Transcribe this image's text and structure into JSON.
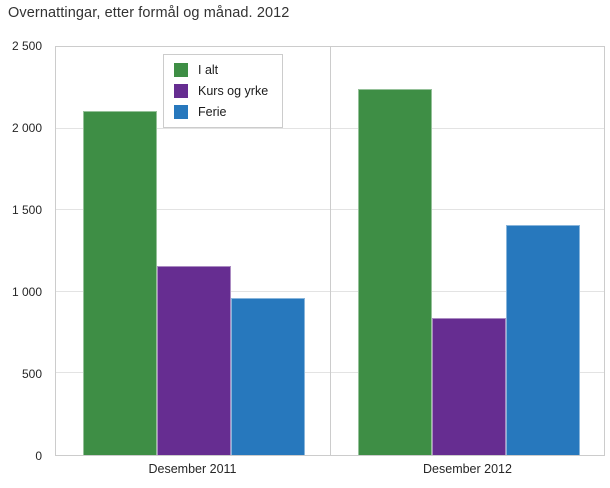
{
  "title": "Overnattingar, etter formål og månad. 2012",
  "colors": {
    "green": "#3e8e45",
    "purple": "#662d91",
    "blue": "#2778bd",
    "gridline": "#e3e3e3",
    "plot_border": "#cccccc",
    "text": "#262626",
    "title_text": "#333333",
    "background": "#ffffff"
  },
  "chart_data": {
    "type": "bar",
    "title": "Overnattingar, etter formål og månad. 2012",
    "categories": [
      "Desember 2011",
      "Desember 2012"
    ],
    "series": [
      {
        "name": "I alt",
        "color": "#3e8e45",
        "values": [
          2110,
          2245
        ]
      },
      {
        "name": "Kurs og yrke",
        "color": "#662d91",
        "values": [
          1160,
          840
        ]
      },
      {
        "name": "Ferie",
        "color": "#2778bd",
        "values": [
          960,
          1410
        ]
      }
    ],
    "xlabel": "",
    "ylabel": "",
    "ylim": [
      0,
      2500
    ],
    "yticks": [
      0,
      500,
      1000,
      1500,
      2000,
      2500
    ],
    "ytick_labels": [
      "0",
      "500",
      "1 000",
      "1 500",
      "2 000",
      "2 500"
    ],
    "grid": true,
    "legend_position": "top-left-inside",
    "panel_divider": true
  }
}
